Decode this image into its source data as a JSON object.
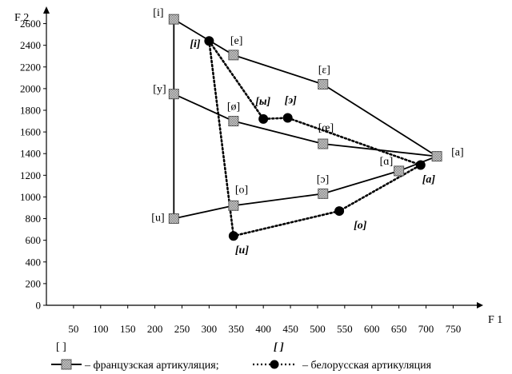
{
  "chart_data": {
    "type": "scatter",
    "xlabel": "F 1",
    "ylabel": "F 2",
    "xlim": [
      0,
      770
    ],
    "ylim": [
      0,
      2700
    ],
    "x_ticks": [
      50,
      100,
      150,
      200,
      250,
      300,
      350,
      400,
      450,
      500,
      550,
      600,
      650,
      700,
      750
    ],
    "y_ticks": [
      0,
      200,
      400,
      600,
      800,
      1000,
      1200,
      1400,
      1600,
      1800,
      2000,
      2200,
      2400,
      2600
    ],
    "series": [
      {
        "name": "французская артикуляция",
        "bracket": "[ ]",
        "marker": "square",
        "line": "solid",
        "points": [
          {
            "label": "[i]",
            "x": 235,
            "y": 2640
          },
          {
            "label": "[e]",
            "x": 345,
            "y": 2310
          },
          {
            "label": "[ɛ]",
            "x": 510,
            "y": 2040
          },
          {
            "label": "[a]",
            "x": 720,
            "y": 1375
          },
          {
            "label": "[y]",
            "x": 235,
            "y": 1950
          },
          {
            "label": "[ø]",
            "x": 345,
            "y": 1700
          },
          {
            "label": "[œ]",
            "x": 510,
            "y": 1490
          },
          {
            "label": "[u]",
            "x": 235,
            "y": 800
          },
          {
            "label": "[o]",
            "x": 345,
            "y": 920
          },
          {
            "label": "[ɔ]",
            "x": 510,
            "y": 1030
          },
          {
            "label": "[ɑ]",
            "x": 650,
            "y": 1240
          }
        ],
        "lines": [
          [
            "[i]",
            "[e]",
            "[ɛ]",
            "[a]"
          ],
          [
            "[y]",
            "[ø]",
            "[œ]",
            "[a]"
          ],
          [
            "[u]",
            "[o]",
            "[ɔ]",
            "[ɑ]",
            "[a]"
          ],
          [
            "[i]",
            "[y]",
            "[u]"
          ]
        ]
      },
      {
        "name": "белорусская артикуляция",
        "bracket": "[ ]",
        "marker": "circle",
        "line": "dotted",
        "points": [
          {
            "label": "[i]",
            "x": 300,
            "y": 2440
          },
          {
            "label": "[ы]",
            "x": 400,
            "y": 1720
          },
          {
            "label": "[э]",
            "x": 445,
            "y": 1730
          },
          {
            "label": "[а]",
            "x": 690,
            "y": 1295
          },
          {
            "label": "[о]",
            "x": 540,
            "y": 870
          },
          {
            "label": "[u]",
            "x": 345,
            "y": 640
          }
        ],
        "lines": [
          [
            "[i]",
            "[ы]",
            "[э]",
            "[а]"
          ],
          [
            "[i]",
            "[u]",
            "[о]",
            "[а]"
          ]
        ]
      }
    ],
    "legend": {
      "position": "bottom",
      "french_text": "– французская артикуляция;",
      "belarus_text": "– белорусская артикуляция",
      "french_bracket": "[ ]",
      "belarus_bracket": "[ ]"
    }
  }
}
